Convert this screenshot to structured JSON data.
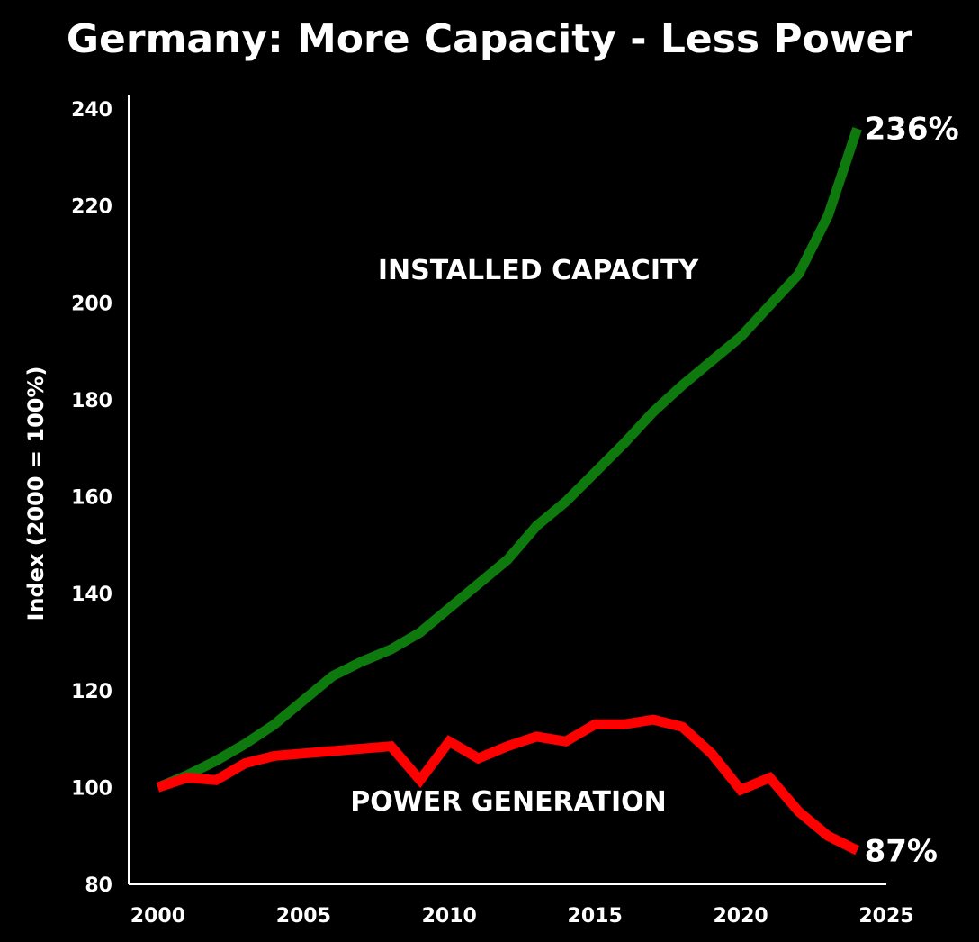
{
  "chart_data": {
    "type": "line",
    "title": "Germany: More Capacity - Less Power",
    "xlabel": "",
    "ylabel": "Index (2000 = 100%)",
    "xlim": [
      1999,
      2025
    ],
    "ylim": [
      80,
      243
    ],
    "x_ticks": [
      2000,
      2005,
      2010,
      2015,
      2020,
      2025
    ],
    "y_ticks": [
      80,
      100,
      120,
      140,
      160,
      180,
      200,
      220,
      240
    ],
    "grid": false,
    "legend": "none",
    "x": [
      2000,
      2001,
      2002,
      2003,
      2004,
      2005,
      2006,
      2007,
      2008,
      2009,
      2010,
      2011,
      2012,
      2013,
      2014,
      2015,
      2016,
      2017,
      2018,
      2019,
      2020,
      2021,
      2022,
      2023,
      2024
    ],
    "series": [
      {
        "name": "INSTALLED CAPACITY",
        "color": "#0e7a0d",
        "end_label": "236%",
        "values": [
          100,
          102.5,
          105.5,
          109,
          113,
          118,
          123,
          126,
          128.5,
          132,
          137,
          142,
          147,
          154,
          159,
          165,
          171,
          177.5,
          183,
          188,
          193,
          199.5,
          206,
          218,
          236
        ]
      },
      {
        "name": "POWER GENERATION",
        "color": "#ff0000",
        "end_label": "87%",
        "values": [
          100,
          102,
          101.5,
          105,
          106.5,
          107,
          107.5,
          108,
          108.5,
          101.5,
          109.5,
          106,
          108.5,
          110.5,
          109.5,
          113,
          113,
          114,
          112.5,
          107,
          99.5,
          102,
          95,
          90,
          87
        ]
      }
    ]
  }
}
